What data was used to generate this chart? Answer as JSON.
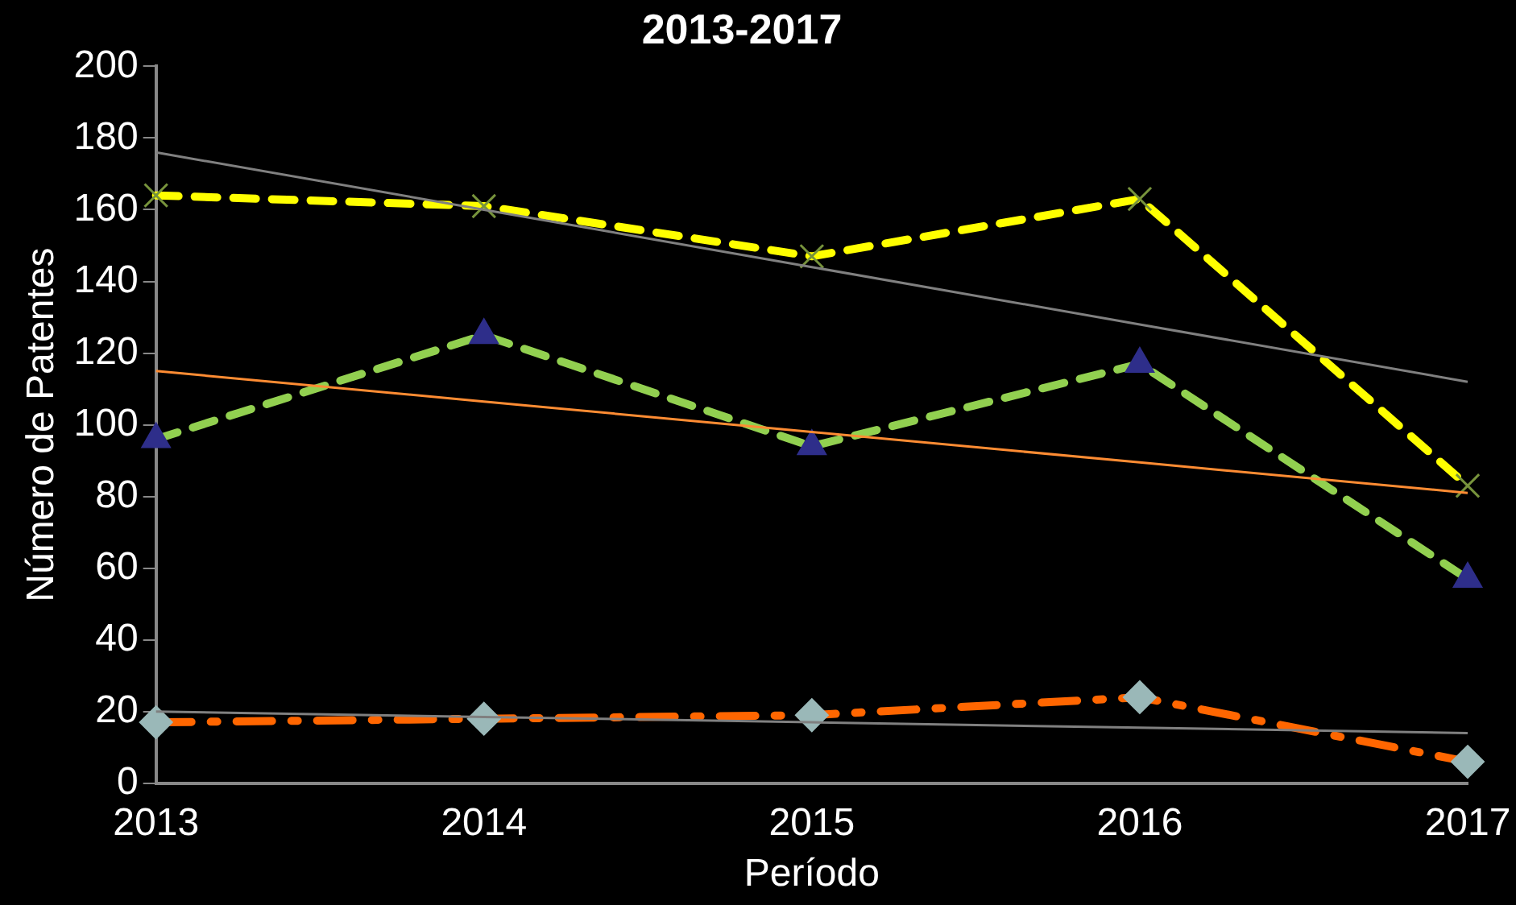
{
  "chart_data": {
    "type": "line",
    "title": "2013-2017",
    "xlabel": "Período",
    "ylabel": "Número de Patentes",
    "categories": [
      "2013",
      "2014",
      "2015",
      "2016",
      "2017"
    ],
    "ylim": [
      0,
      200
    ],
    "yticks": [
      0,
      20,
      40,
      60,
      80,
      100,
      120,
      140,
      160,
      180,
      200
    ],
    "grid": false,
    "legend": false,
    "series": [
      {
        "color": "#ffff00",
        "marker": "cross",
        "colors": [
          "#77933c",
          "#77933c",
          "#77933c",
          "#77933c",
          "#77933c"
        ],
        "line_style": "dashed",
        "values": [
          164,
          161,
          147,
          163,
          83
        ]
      },
      {
        "color": "#92d050",
        "marker": "triangle",
        "colors": [
          "#2e2e8a",
          "#2e2e8a",
          "#2e2e8a",
          "#2e2e8a",
          "#2e2e8a"
        ],
        "line_style": "dashed",
        "values": [
          96,
          125,
          94,
          117,
          57
        ]
      },
      {
        "color": "#ff6600",
        "marker": "diamond",
        "colors": [
          "#9ab8b8",
          "#9ab8b8",
          "#9ab8b8",
          "#9ab8b8",
          "#9ab8b8"
        ],
        "line_style": "dashdot",
        "values": [
          17,
          18,
          19,
          24,
          6
        ]
      },
      {
        "color": "#808080",
        "marker": "none",
        "line_style": "solid",
        "values": [
          176,
          160,
          144,
          128,
          112
        ]
      },
      {
        "color": "#ff8c33",
        "marker": "none",
        "line_style": "solid",
        "values": [
          115,
          106.5,
          98,
          89.5,
          81
        ]
      },
      {
        "color": "#808080",
        "marker": "none",
        "line_style": "solid",
        "values": [
          20,
          18.5,
          17,
          15.5,
          14
        ]
      }
    ]
  }
}
